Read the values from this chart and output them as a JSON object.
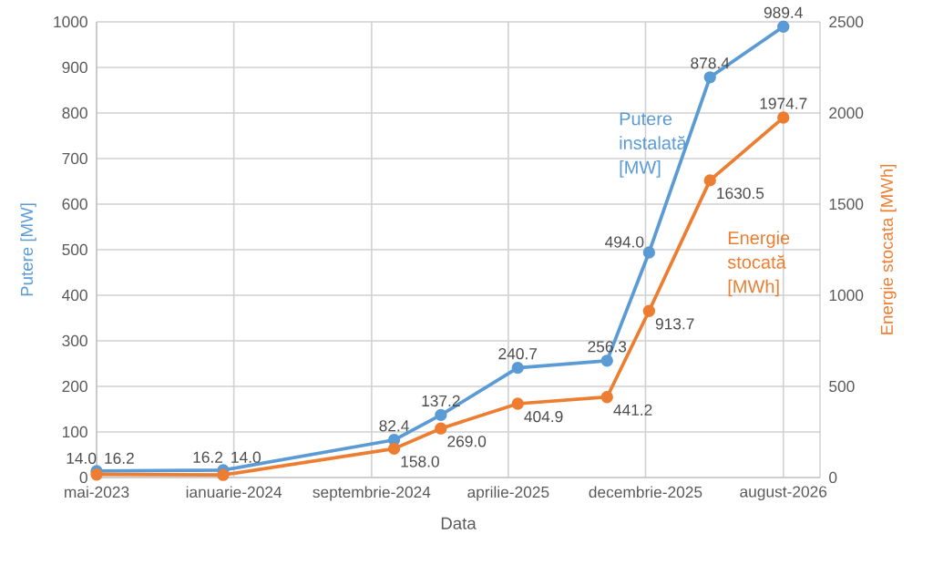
{
  "chart_data": {
    "type": "line",
    "xlabel": "Data",
    "ylabel": "Putere [MW]",
    "y2label": "Energie stocata [MWh]",
    "x": [
      "2023-05-31",
      "2023-12-31",
      "2024-10-15",
      "2025-01-02",
      "2025-05-12",
      "2025-10-10",
      "2025-12-20",
      "2026-04-02",
      "2026-08-04"
    ],
    "series": [
      {
        "name": "Putere instalată [MW]",
        "color": "#5b9bd5",
        "values": [
          14.0,
          16.2,
          82.4,
          137.2,
          240.7,
          256.3,
          494.0,
          878.4,
          989.4
        ],
        "value_labels": [
          "14.0",
          "16.2",
          "82.4",
          "137.2",
          "240.7",
          "256.3",
          "494.0",
          "878.4",
          "989.4"
        ]
      },
      {
        "name": "Energie stocată [MWh]",
        "color": "#ed7d31",
        "axis": "y2",
        "values": [
          16.2,
          14.0,
          158.0,
          269.0,
          404.9,
          441.2,
          913.7,
          1630.5,
          1974.7
        ],
        "value_labels": [
          "16.2",
          "14.0",
          "158.0",
          "269.0",
          "404.9",
          "441.2",
          "913.7",
          "1630.5",
          "1974.7"
        ]
      }
    ],
    "xlim": [
      "2023-05-31",
      "2026-10-05"
    ],
    "xticks": [
      {
        "value": "2023-05-31",
        "label": "mai-2023"
      },
      {
        "value": "2024-01-18",
        "label": "ianuarie-2024"
      },
      {
        "value": "2024-09-07",
        "label": "septembrie-2024"
      },
      {
        "value": "2025-04-26",
        "label": "aprilie-2025"
      },
      {
        "value": "2025-12-14",
        "label": "decembrie-2025"
      },
      {
        "value": "2026-08-04",
        "label": "august-2026"
      }
    ],
    "ylim": [
      0,
      1000
    ],
    "yticks": [
      0,
      100,
      200,
      300,
      400,
      500,
      600,
      700,
      800,
      900,
      1000
    ],
    "y2lim": [
      0,
      2500
    ],
    "y2ticks": [
      0,
      500,
      1000,
      1500,
      2000,
      2500
    ],
    "grid": true,
    "marker": "circle",
    "line_style": "solid"
  }
}
